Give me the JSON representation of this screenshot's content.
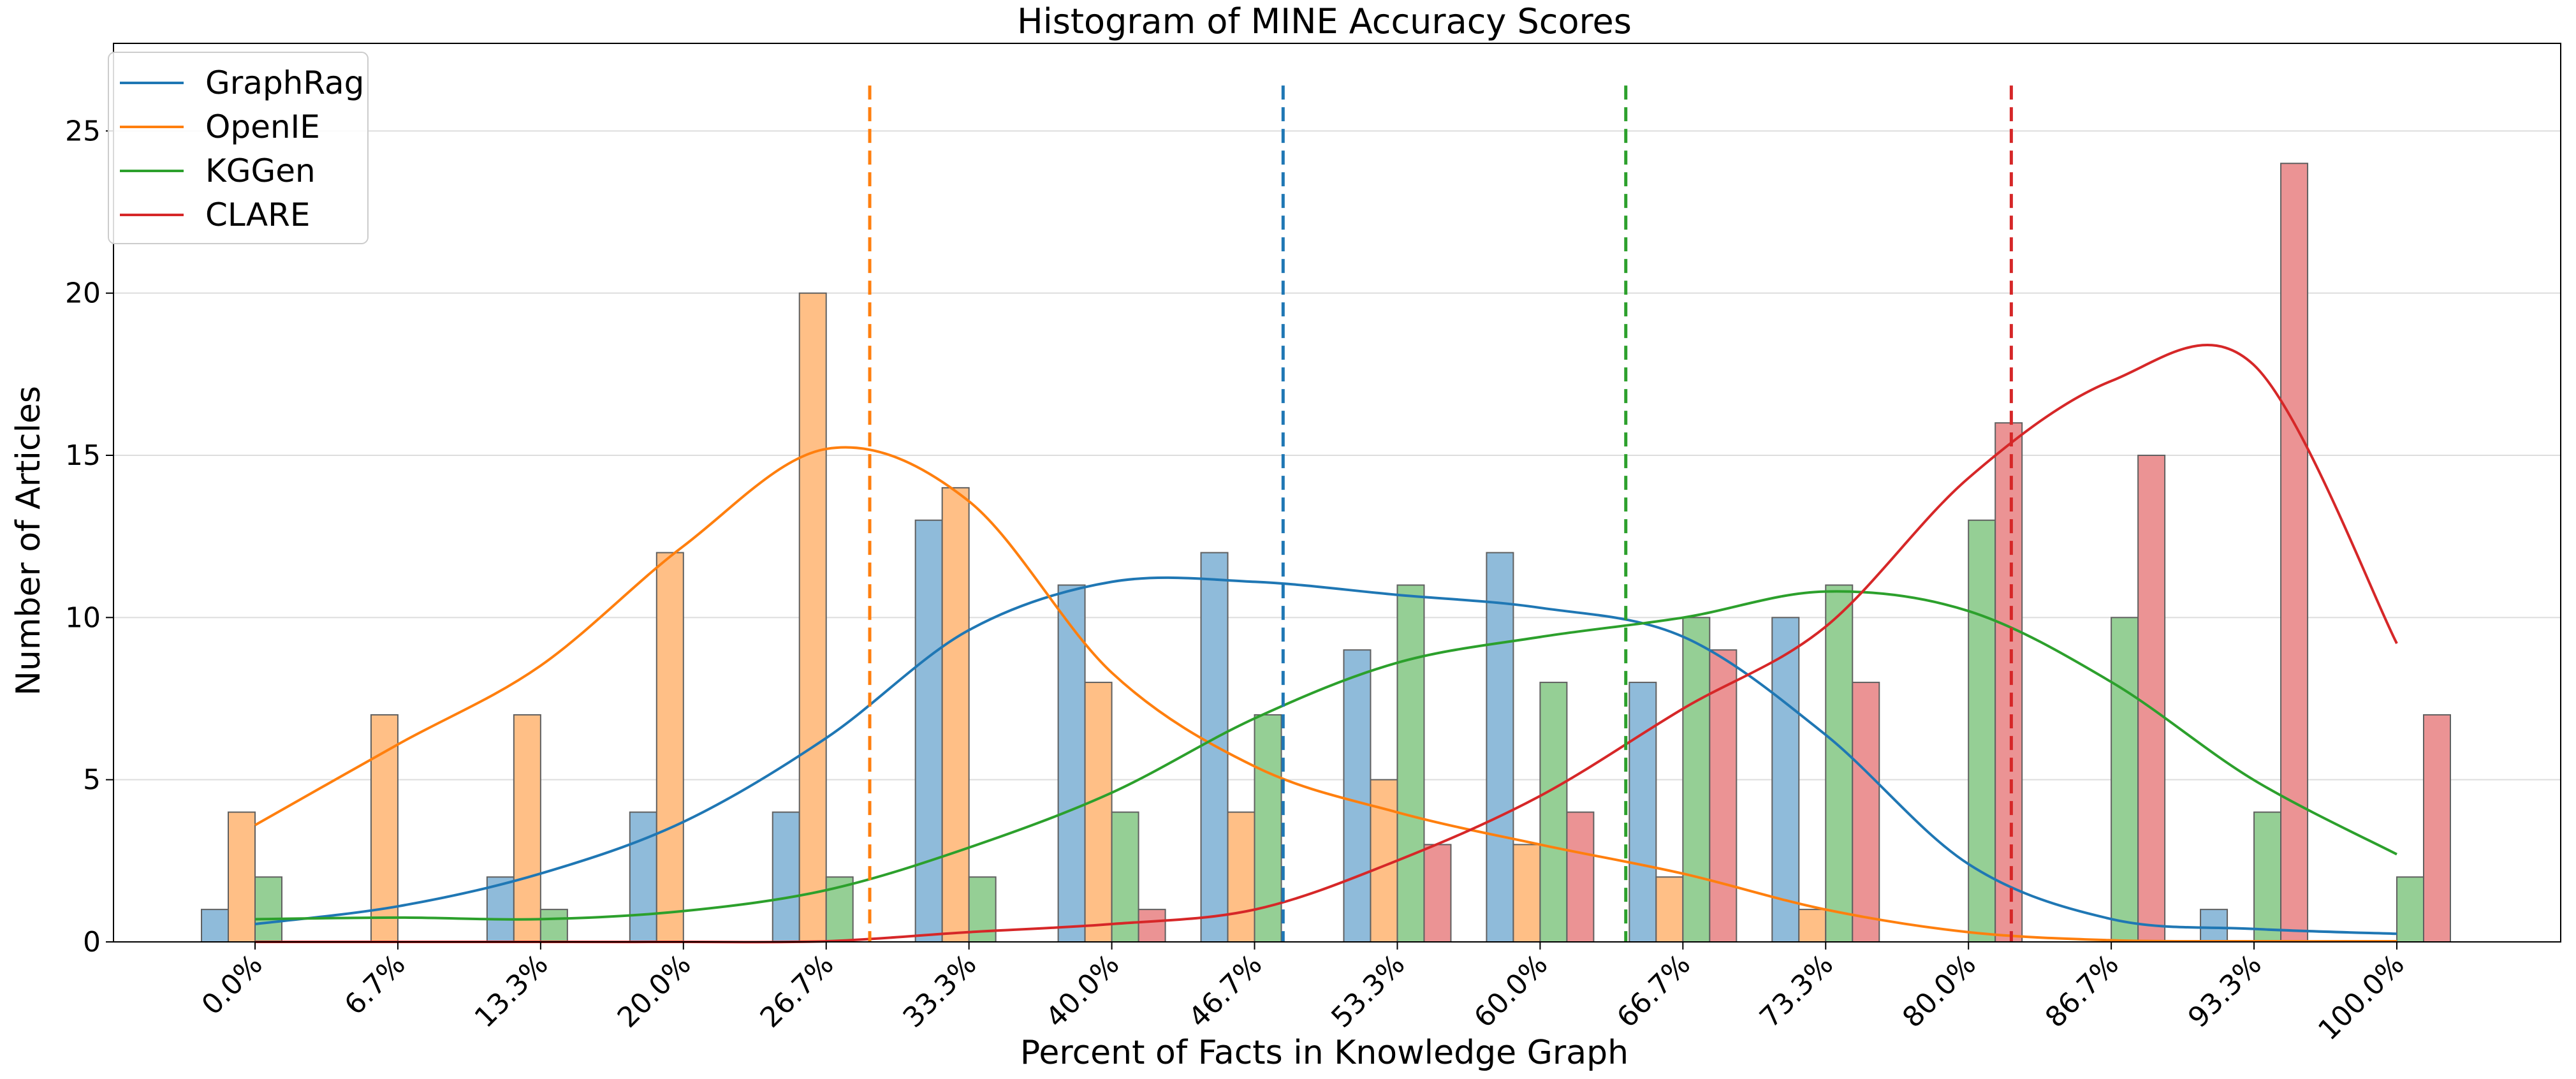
{
  "chart_data": {
    "type": "bar",
    "title": "Histogram of MINE Accuracy Scores",
    "xlabel": "Percent of Facts in Knowledge Graph",
    "ylabel": "Number of Articles",
    "categories": [
      "0.0%",
      "6.7%",
      "13.3%",
      "20.0%",
      "26.7%",
      "33.3%",
      "40.0%",
      "46.7%",
      "53.3%",
      "60.0%",
      "66.7%",
      "73.3%",
      "80.0%",
      "86.7%",
      "93.3%",
      "100.0%"
    ],
    "ylim": [
      0,
      27.7
    ],
    "yticks": [
      0,
      5,
      10,
      15,
      20,
      25
    ],
    "grid": "y",
    "legend_position": "top-left",
    "series": [
      {
        "name": "GraphRag",
        "color": "#1f77b4",
        "bar_color": "#8fbbda",
        "values": [
          1,
          0,
          2,
          4,
          4,
          13,
          11,
          12,
          9,
          12,
          8,
          10,
          0,
          0,
          1,
          0
        ],
        "mean_line": 48.0,
        "kde": [
          [
            0,
            0.55
          ],
          [
            6.7,
            1.1
          ],
          [
            13.3,
            2.1
          ],
          [
            20,
            3.7
          ],
          [
            26.7,
            6.3
          ],
          [
            33.3,
            9.6
          ],
          [
            40,
            11.1
          ],
          [
            46.7,
            11.1
          ],
          [
            53.3,
            10.7
          ],
          [
            60,
            10.3
          ],
          [
            66.7,
            9.4
          ],
          [
            73.3,
            6.4
          ],
          [
            80,
            2.4
          ],
          [
            86.7,
            0.7
          ],
          [
            93.3,
            0.4
          ],
          [
            100,
            0.25
          ]
        ]
      },
      {
        "name": "OpenIE",
        "color": "#ff7f0e",
        "bar_color": "#ffbf86",
        "values": [
          4,
          7,
          7,
          12,
          20,
          14,
          8,
          4,
          5,
          3,
          2,
          1,
          0,
          0,
          0,
          0
        ],
        "mean_line": 28.7,
        "kde": [
          [
            0,
            3.6
          ],
          [
            6.7,
            6.1
          ],
          [
            13.3,
            8.5
          ],
          [
            20,
            12.2
          ],
          [
            26.7,
            15.2
          ],
          [
            33.3,
            13.6
          ],
          [
            40,
            8.3
          ],
          [
            46.7,
            5.4
          ],
          [
            53.3,
            4.0
          ],
          [
            60,
            3.0
          ],
          [
            66.7,
            2.1
          ],
          [
            73.3,
            1.0
          ],
          [
            80,
            0.3
          ],
          [
            86.7,
            0.05
          ],
          [
            93.3,
            0.02
          ],
          [
            100,
            0.02
          ]
        ]
      },
      {
        "name": "KGGen",
        "color": "#2ca02c",
        "bar_color": "#95cf95",
        "values": [
          2,
          0,
          1,
          0,
          2,
          2,
          4,
          7,
          11,
          8,
          10,
          11,
          13,
          10,
          4,
          2
        ],
        "mean_line": 64.0,
        "kde": [
          [
            0,
            0.7
          ],
          [
            6.7,
            0.75
          ],
          [
            13.3,
            0.7
          ],
          [
            20,
            0.95
          ],
          [
            26.7,
            1.6
          ],
          [
            33.3,
            2.9
          ],
          [
            40,
            4.6
          ],
          [
            46.7,
            6.9
          ],
          [
            53.3,
            8.6
          ],
          [
            60,
            9.4
          ],
          [
            66.7,
            10.0
          ],
          [
            73.3,
            10.8
          ],
          [
            80,
            10.2
          ],
          [
            86.7,
            8.0
          ],
          [
            93.3,
            5.0
          ],
          [
            100,
            2.7
          ]
        ]
      },
      {
        "name": "CLARE",
        "color": "#d62728",
        "bar_color": "#eb9394",
        "values": [
          0,
          0,
          0,
          0,
          0,
          0,
          1,
          0,
          3,
          4,
          9,
          8,
          16,
          15,
          24,
          7
        ],
        "mean_line": 82.0,
        "kde": [
          [
            0,
            0
          ],
          [
            6.7,
            0
          ],
          [
            13.3,
            0
          ],
          [
            20,
            0
          ],
          [
            26.7,
            0.02
          ],
          [
            33.3,
            0.3
          ],
          [
            40,
            0.55
          ],
          [
            46.7,
            1.0
          ],
          [
            53.3,
            2.5
          ],
          [
            60,
            4.5
          ],
          [
            66.7,
            7.2
          ],
          [
            73.3,
            9.7
          ],
          [
            80,
            14.3
          ],
          [
            86.7,
            17.3
          ],
          [
            93.3,
            17.8
          ],
          [
            100,
            9.2
          ]
        ]
      }
    ]
  }
}
